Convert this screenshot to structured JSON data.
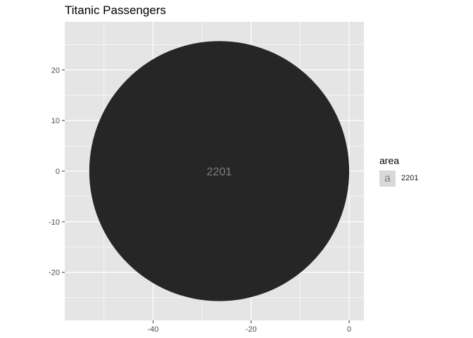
{
  "chart_data": {
    "type": "bubble",
    "title": "Titanic Passengers",
    "xlabel": "",
    "ylabel": "",
    "xlim": [
      -58,
      3
    ],
    "ylim": [
      -29.5,
      29.5
    ],
    "x_ticks": [
      -40,
      -20,
      0
    ],
    "y_ticks": [
      -20,
      -10,
      0,
      10,
      20
    ],
    "grid": true,
    "points": [
      {
        "x": -26.5,
        "y": 0,
        "radius": 26.5,
        "label": "2201",
        "color": "#262626"
      }
    ],
    "legend": {
      "title": "area",
      "key_glyph": "a",
      "entries": [
        "2201"
      ],
      "position": "right"
    },
    "colors": {
      "panel": "#e5e5e5",
      "grid": "#ffffff",
      "fill": "#262626",
      "label": "#7f7f7f"
    }
  }
}
